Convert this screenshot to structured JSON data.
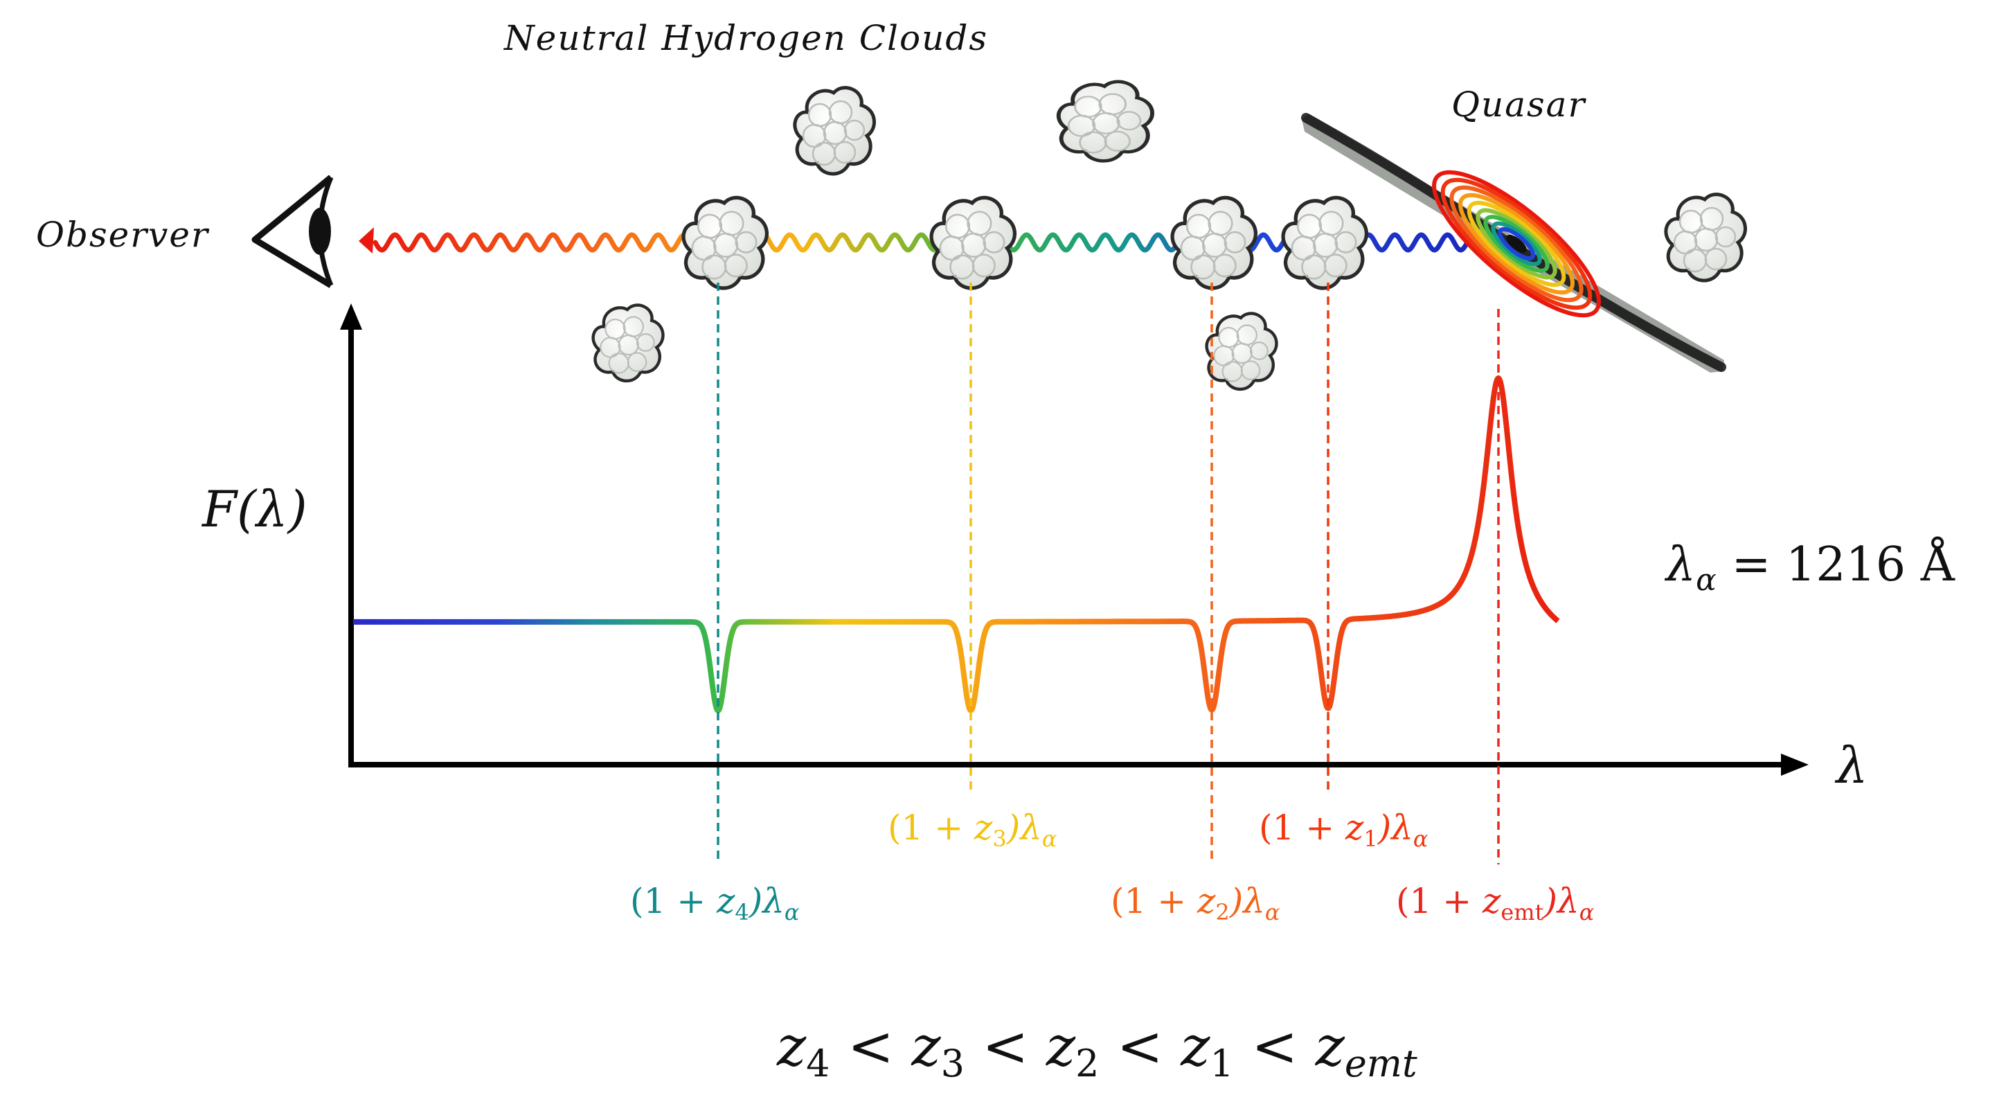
{
  "labels": {
    "clouds_title": "Neutral Hydrogen Clouds",
    "quasar": "Quasar",
    "observer": "Observer"
  },
  "plot": {
    "y_axis_label": "F(λ)",
    "x_axis_label": "λ",
    "lyman_alpha_text": "λ",
    "lyman_alpha_sub": "α",
    "lyman_alpha_value": " = 1216 Å"
  },
  "absorbers": [
    {
      "id": "z4",
      "color": "#12898a",
      "prefix": "(1 + ",
      "z": "z",
      "sub": "4",
      "suffix": ")λ",
      "lam_sub": "α"
    },
    {
      "id": "z3",
      "color": "#f2c211",
      "prefix": "(1 + ",
      "z": "z",
      "sub": "3",
      "suffix": ")λ",
      "lam_sub": "α"
    },
    {
      "id": "z2",
      "color": "#f46418",
      "prefix": "(1 + ",
      "z": "z",
      "sub": "2",
      "suffix": ")λ",
      "lam_sub": "α"
    },
    {
      "id": "z1",
      "color": "#f2380e",
      "prefix": "(1 + ",
      "z": "z",
      "sub": "1",
      "suffix": ")λ",
      "lam_sub": "α"
    },
    {
      "id": "zemt",
      "color": "#e8281c",
      "prefix": "(1 + ",
      "z": "z",
      "sub": "emt",
      "suffix": ")λ",
      "lam_sub": "α"
    }
  ],
  "inequality": {
    "parts": [
      {
        "z": "z",
        "sub": "4"
      },
      {
        "z": "z",
        "sub": "3"
      },
      {
        "z": "z",
        "sub": "2"
      },
      {
        "z": "z",
        "sub": "1"
      },
      {
        "z": "z",
        "sub": "emt"
      }
    ],
    "op": "<"
  },
  "colors": {
    "axis": "#000000",
    "cloud_fill": "#eef1ee",
    "cloud_stroke": "#2a2a2a"
  },
  "icons": [
    "eye-icon",
    "cloud-icon",
    "quasar-icon",
    "photon-wave"
  ]
}
